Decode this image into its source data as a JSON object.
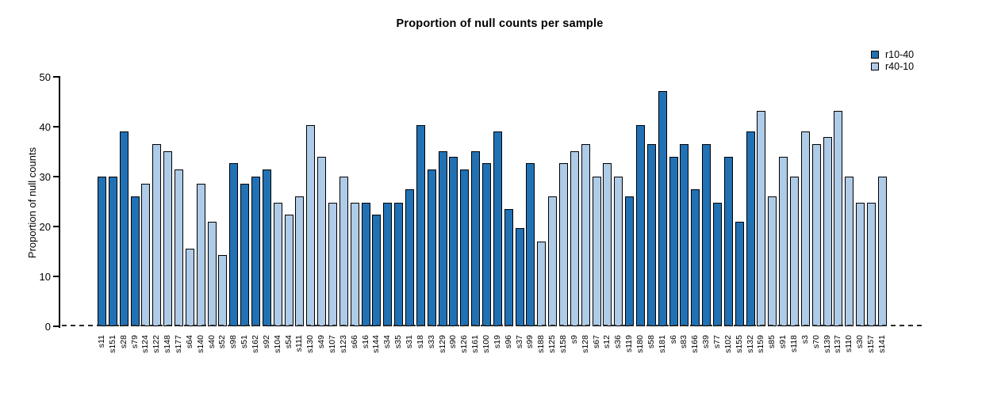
{
  "title": "Proportion of null counts per sample",
  "y_axis": {
    "label": "Proportion of null counts",
    "ticks": [
      0,
      10,
      20,
      30,
      40,
      50
    ]
  },
  "legend": {
    "items": [
      {
        "label": "r10-40",
        "color": "#2171B5"
      },
      {
        "label": "r40-10",
        "color": "#AECBE8"
      }
    ]
  },
  "chart_data": {
    "type": "bar",
    "title": "Proportion of null counts per sample",
    "xlabel": "",
    "ylabel": "Proportion of null counts",
    "ylim": [
      0,
      50
    ],
    "grid": false,
    "legend_position": "top-right",
    "baseline_style": "dashed-zero-line",
    "series": [
      {
        "name": "r10-40",
        "color": "#2171B5"
      },
      {
        "name": "r40-10",
        "color": "#AECBE8"
      }
    ],
    "samples": [
      {
        "label": "s11",
        "value": 29.9,
        "series": "r10-40"
      },
      {
        "label": "s151",
        "value": 29.9,
        "series": "r10-40"
      },
      {
        "label": "s28",
        "value": 39.0,
        "series": "r10-40"
      },
      {
        "label": "s79",
        "value": 26.0,
        "series": "r10-40"
      },
      {
        "label": "s124",
        "value": 28.6,
        "series": "r40-10"
      },
      {
        "label": "s122",
        "value": 36.5,
        "series": "r40-10"
      },
      {
        "label": "s148",
        "value": 35.1,
        "series": "r40-10"
      },
      {
        "label": "s177",
        "value": 31.4,
        "series": "r40-10"
      },
      {
        "label": "s64",
        "value": 15.6,
        "series": "r40-10"
      },
      {
        "label": "s140",
        "value": 28.6,
        "series": "r40-10"
      },
      {
        "label": "s40",
        "value": 20.9,
        "series": "r40-10"
      },
      {
        "label": "s52",
        "value": 14.3,
        "series": "r40-10"
      },
      {
        "label": "s98",
        "value": 32.6,
        "series": "r10-40"
      },
      {
        "label": "s51",
        "value": 28.6,
        "series": "r10-40"
      },
      {
        "label": "s162",
        "value": 29.9,
        "series": "r10-40"
      },
      {
        "label": "s92",
        "value": 31.4,
        "series": "r10-40"
      },
      {
        "label": "s104",
        "value": 24.7,
        "series": "r40-10"
      },
      {
        "label": "s54",
        "value": 22.3,
        "series": "r40-10"
      },
      {
        "label": "s111",
        "value": 26.0,
        "series": "r40-10"
      },
      {
        "label": "s130",
        "value": 40.3,
        "series": "r40-10"
      },
      {
        "label": "s49",
        "value": 33.9,
        "series": "r40-10"
      },
      {
        "label": "s107",
        "value": 24.7,
        "series": "r40-10"
      },
      {
        "label": "s123",
        "value": 29.9,
        "series": "r40-10"
      },
      {
        "label": "s66",
        "value": 24.7,
        "series": "r40-10"
      },
      {
        "label": "s16",
        "value": 24.7,
        "series": "r10-40"
      },
      {
        "label": "s144",
        "value": 22.3,
        "series": "r10-40"
      },
      {
        "label": "s34",
        "value": 24.7,
        "series": "r10-40"
      },
      {
        "label": "s35",
        "value": 24.7,
        "series": "r10-40"
      },
      {
        "label": "s31",
        "value": 27.4,
        "series": "r10-40"
      },
      {
        "label": "s18",
        "value": 40.3,
        "series": "r10-40"
      },
      {
        "label": "s33",
        "value": 31.4,
        "series": "r10-40"
      },
      {
        "label": "s129",
        "value": 35.1,
        "series": "r10-40"
      },
      {
        "label": "s90",
        "value": 33.9,
        "series": "r10-40"
      },
      {
        "label": "s126",
        "value": 31.4,
        "series": "r10-40"
      },
      {
        "label": "s161",
        "value": 35.1,
        "series": "r10-40"
      },
      {
        "label": "s100",
        "value": 32.6,
        "series": "r10-40"
      },
      {
        "label": "s19",
        "value": 39.0,
        "series": "r10-40"
      },
      {
        "label": "s96",
        "value": 23.4,
        "series": "r10-40"
      },
      {
        "label": "s37",
        "value": 19.6,
        "series": "r10-40"
      },
      {
        "label": "s99",
        "value": 32.6,
        "series": "r10-40"
      },
      {
        "label": "s188",
        "value": 16.9,
        "series": "r40-10"
      },
      {
        "label": "s125",
        "value": 26.0,
        "series": "r40-10"
      },
      {
        "label": "s158",
        "value": 32.6,
        "series": "r40-10"
      },
      {
        "label": "s9",
        "value": 35.1,
        "series": "r40-10"
      },
      {
        "label": "s128",
        "value": 36.5,
        "series": "r40-10"
      },
      {
        "label": "s67",
        "value": 29.9,
        "series": "r40-10"
      },
      {
        "label": "s12",
        "value": 32.6,
        "series": "r40-10"
      },
      {
        "label": "s36",
        "value": 29.9,
        "series": "r40-10"
      },
      {
        "label": "s119",
        "value": 26.0,
        "series": "r10-40"
      },
      {
        "label": "s180",
        "value": 40.3,
        "series": "r10-40"
      },
      {
        "label": "s58",
        "value": 36.5,
        "series": "r10-40"
      },
      {
        "label": "s181",
        "value": 47.1,
        "series": "r10-40"
      },
      {
        "label": "s6",
        "value": 33.9,
        "series": "r10-40"
      },
      {
        "label": "s83",
        "value": 36.5,
        "series": "r10-40"
      },
      {
        "label": "s166",
        "value": 27.4,
        "series": "r10-40"
      },
      {
        "label": "s39",
        "value": 36.5,
        "series": "r10-40"
      },
      {
        "label": "s77",
        "value": 24.7,
        "series": "r10-40"
      },
      {
        "label": "s102",
        "value": 33.9,
        "series": "r10-40"
      },
      {
        "label": "s155",
        "value": 20.9,
        "series": "r10-40"
      },
      {
        "label": "s132",
        "value": 39.0,
        "series": "r10-40"
      },
      {
        "label": "s159",
        "value": 43.1,
        "series": "r40-10"
      },
      {
        "label": "s85",
        "value": 26.0,
        "series": "r40-10"
      },
      {
        "label": "s91",
        "value": 33.9,
        "series": "r40-10"
      },
      {
        "label": "s118",
        "value": 29.9,
        "series": "r40-10"
      },
      {
        "label": "s3",
        "value": 39.0,
        "series": "r40-10"
      },
      {
        "label": "s70",
        "value": 36.5,
        "series": "r40-10"
      },
      {
        "label": "s139",
        "value": 37.8,
        "series": "r40-10"
      },
      {
        "label": "s137",
        "value": 43.1,
        "series": "r40-10"
      },
      {
        "label": "s110",
        "value": 29.9,
        "series": "r40-10"
      },
      {
        "label": "s30",
        "value": 24.7,
        "series": "r40-10"
      },
      {
        "label": "s157",
        "value": 24.7,
        "series": "r40-10"
      },
      {
        "label": "s141",
        "value": 29.9,
        "series": "r40-10"
      }
    ]
  }
}
